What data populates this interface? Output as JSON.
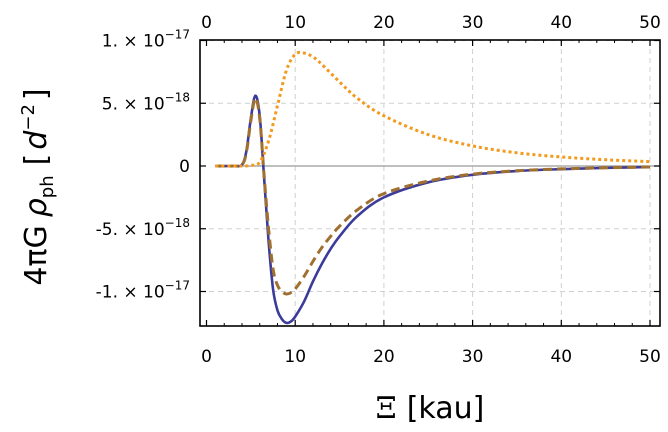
{
  "chart_data": {
    "type": "line",
    "xlabel_symbol": "Ξ",
    "xlabel_unit": "[kau]",
    "ylabel_prefix": "4πG",
    "ylabel_rho": "ρ",
    "ylabel_sub": "ph",
    "ylabel_unit_open": "[",
    "ylabel_unit_base": "d",
    "ylabel_unit_exp": "−2",
    "ylabel_unit_close": "]",
    "xlim": [
      0,
      50
    ],
    "ylim": [
      -1.3e-17,
      1.05e-17
    ],
    "x_ticks": [
      0,
      10,
      20,
      30,
      40,
      50
    ],
    "x_tick_labels": [
      "0",
      "10",
      "20",
      "30",
      "40",
      "50"
    ],
    "y_ticks": [
      {
        "value": 1e-17,
        "mantissa": "1.",
        "exp": "−17"
      },
      {
        "value": 5e-18,
        "mantissa": "5.",
        "exp": "−18"
      },
      {
        "value": 0,
        "mantissa": "0",
        "exp": ""
      },
      {
        "value": -5e-18,
        "mantissa": "-5.",
        "exp": "−18"
      },
      {
        "value": -1e-17,
        "mantissa": "-1.",
        "exp": "−17"
      }
    ],
    "grid": true,
    "zero_line": true,
    "series": [
      {
        "color": "#3b3b9a",
        "style": "solid",
        "points": [
          [
            1,
            0
          ],
          [
            3,
            0
          ],
          [
            4,
            1e-19
          ],
          [
            4.5,
            1.2e-18
          ],
          [
            5,
            3.8e-18
          ],
          [
            5.5,
            5.6e-18
          ],
          [
            6,
            4e-18
          ],
          [
            6.5,
            -1e-18
          ],
          [
            7,
            -6e-18
          ],
          [
            7.5,
            -9.8e-18
          ],
          [
            8,
            -1.15e-17
          ],
          [
            8.5,
            -1.22e-17
          ],
          [
            9,
            -1.25e-17
          ],
          [
            9.5,
            -1.24e-17
          ],
          [
            10,
            -1.2e-17
          ],
          [
            11,
            -1.08e-17
          ],
          [
            12,
            -9.2e-18
          ],
          [
            13,
            -7.8e-18
          ],
          [
            14,
            -6.6e-18
          ],
          [
            15,
            -5.6e-18
          ],
          [
            17,
            -4e-18
          ],
          [
            20,
            -2.5e-18
          ],
          [
            25,
            -1.3e-18
          ],
          [
            30,
            -7e-19
          ],
          [
            35,
            -4e-19
          ],
          [
            40,
            -2.5e-19
          ],
          [
            45,
            -1.5e-19
          ],
          [
            50,
            -8e-20
          ]
        ]
      },
      {
        "color": "#a07030",
        "style": "dashed",
        "points": [
          [
            1,
            0
          ],
          [
            3,
            0
          ],
          [
            4,
            1e-19
          ],
          [
            4.5,
            1.1e-18
          ],
          [
            5,
            3.6e-18
          ],
          [
            5.5,
            5.4e-18
          ],
          [
            6,
            3.8e-18
          ],
          [
            6.5,
            -8e-19
          ],
          [
            7,
            -5e-18
          ],
          [
            7.5,
            -8.2e-18
          ],
          [
            8,
            -9.5e-18
          ],
          [
            8.5,
            -1e-17
          ],
          [
            9,
            -1.02e-17
          ],
          [
            9.5,
            -1.01e-17
          ],
          [
            10,
            -9.8e-18
          ],
          [
            11,
            -8.8e-18
          ],
          [
            12,
            -7.6e-18
          ],
          [
            13,
            -6.5e-18
          ],
          [
            14,
            -5.6e-18
          ],
          [
            15,
            -4.8e-18
          ],
          [
            17,
            -3.5e-18
          ],
          [
            20,
            -2.2e-18
          ],
          [
            25,
            -1.2e-18
          ],
          [
            30,
            -6.5e-19
          ],
          [
            35,
            -3.8e-19
          ],
          [
            40,
            -2.3e-19
          ],
          [
            45,
            -1.4e-19
          ],
          [
            50,
            -8e-20
          ]
        ]
      },
      {
        "color": "#f29a1e",
        "style": "dotted",
        "points": [
          [
            1,
            0
          ],
          [
            4,
            0
          ],
          [
            5,
            5e-20
          ],
          [
            6,
            3e-19
          ],
          [
            7,
            2e-18
          ],
          [
            8,
            4.8e-18
          ],
          [
            9,
            7.6e-18
          ],
          [
            10,
            8.9e-18
          ],
          [
            11,
            9e-18
          ],
          [
            12,
            8.7e-18
          ],
          [
            13,
            8.1e-18
          ],
          [
            15,
            6.7e-18
          ],
          [
            17,
            5.4e-18
          ],
          [
            20,
            4e-18
          ],
          [
            25,
            2.5e-18
          ],
          [
            30,
            1.6e-18
          ],
          [
            35,
            1.05e-18
          ],
          [
            40,
            7.2e-19
          ],
          [
            45,
            5e-19
          ],
          [
            50,
            3.5e-19
          ]
        ]
      }
    ]
  }
}
